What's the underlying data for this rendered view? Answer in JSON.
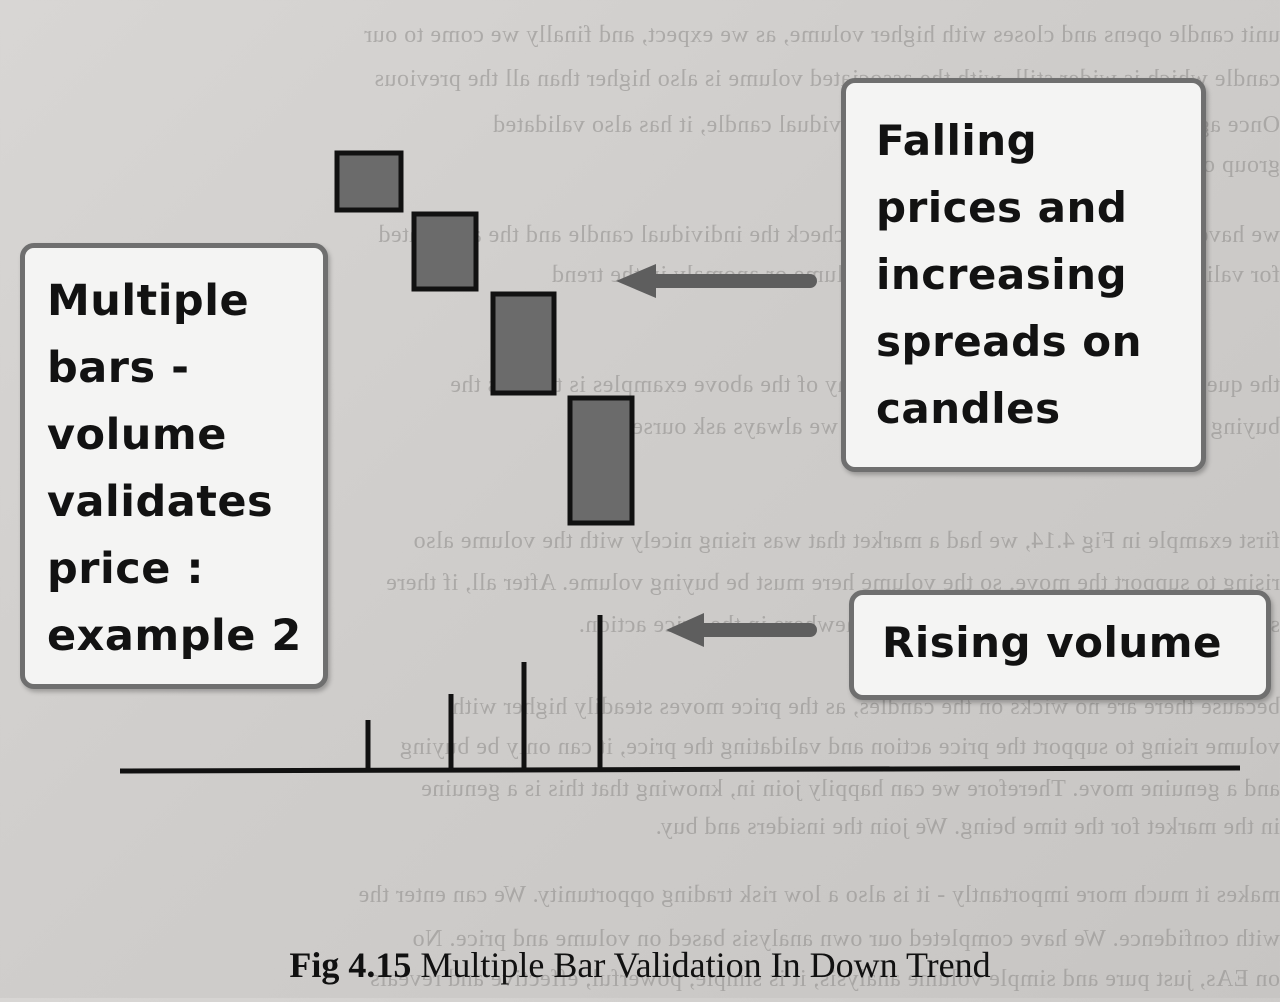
{
  "background_text_lines": [
    "unit candle opens and closes with higher volume, as we expect, and finally we come to our",
    "candle which is wider still, with the associated volume is also higher than all the previous",
    "Once again, volume has validated each individual candle, it has also validated",
    "group of four candles as a whole.",
    "we have two levels of validation. First, we check the individual candle and the associated",
    "for validation, and then we look to see a volume or anomaly in the trend",
    "the question that hasn't been answered in any of the above examples is this - is the",
    "buying or selling? This is the next question we always ask ourselves",
    "first example in Fig 4.14, we had a market that was rising nicely with the volume also",
    "rising to support the move, so the volume here must be buying volume. After all, if there",
    "selling volume this would be reflected somewhere in the price action.",
    "because there are no wicks on the candles, as the price moves steadily higher with",
    "volume rising to support the price action and validating the price, it can only be buying",
    "and a genuine move. Therefore we can happily join in, knowing that this is a genuine",
    "in the market for the time being. We join the insiders and buy.",
    "makes it much more importantly - it is also a low risk trading opportunity. We can enter the",
    "with confidence. We have completed our own analysis based on volume and price. No",
    "on EAs, just pure and simple volume analysis, it is simple, powerful, effective and reveals"
  ],
  "left_box": {
    "lines": [
      "Multiple",
      "bars -",
      "volume",
      "validates",
      "price :",
      "example 2"
    ]
  },
  "right_top_box": {
    "lines": [
      "Falling",
      "prices and",
      "increasing",
      "spreads on",
      "candles"
    ]
  },
  "right_bottom_box": {
    "text": "Rising volume"
  },
  "caption": {
    "fig_label": "Fig 4.15",
    "title": "Multiple Bar Validation In Down Trend"
  },
  "colors": {
    "candle_fill": "#6b6b6b",
    "candle_border": "#111111",
    "arrow": "#5e5e5e",
    "box_border": "#6f6f6f",
    "box_fill": "#f4f4f3"
  }
}
